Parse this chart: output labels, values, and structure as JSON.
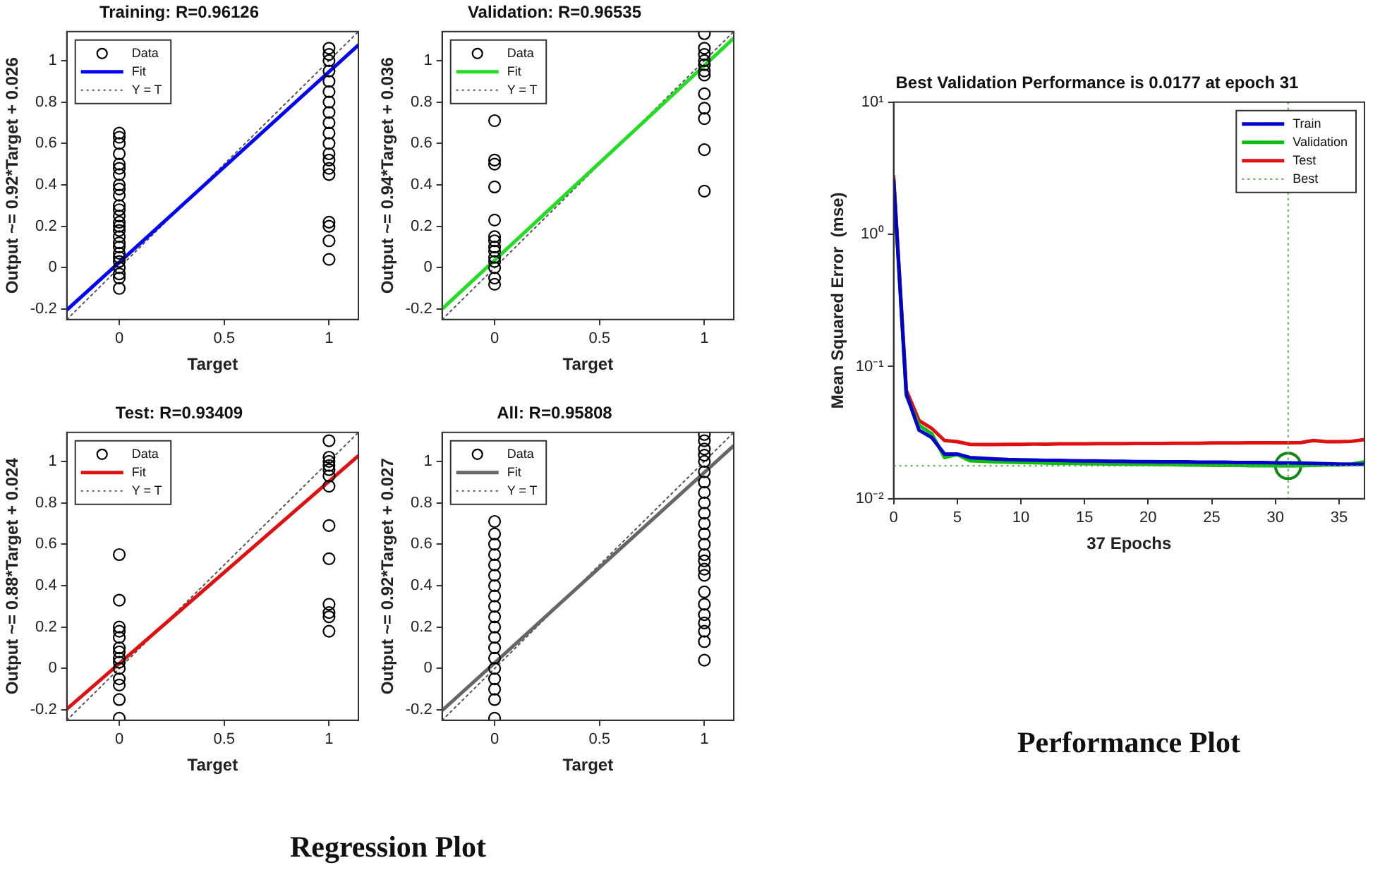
{
  "chart_data": [
    {
      "type": "scatter",
      "title": "Training: R=0.96126",
      "xlabel": "Target",
      "ylabel": "Output ~= 0.92*Target + 0.026",
      "xlim": [
        -0.25,
        1.14
      ],
      "ylim": [
        -0.25,
        1.14
      ],
      "xticks": [
        0,
        0.5,
        1
      ],
      "yticks": [
        -0.2,
        0,
        0.2,
        0.4,
        0.6,
        0.8,
        1
      ],
      "legend": "top left",
      "annotations": [
        "Regression Plot"
      ],
      "series": [
        {
          "name": "Data",
          "type": "scatter",
          "marker": "circle",
          "color": "#000000",
          "x": [
            0,
            0,
            0,
            0,
            0,
            0,
            0,
            0,
            0,
            0,
            0,
            0,
            0,
            0,
            0,
            0,
            0,
            0,
            0,
            0,
            0,
            0,
            0,
            0,
            0,
            0,
            1,
            1,
            1,
            1,
            1,
            1,
            1,
            1,
            1,
            1,
            1,
            1,
            1,
            1,
            1,
            1,
            1,
            1,
            1
          ],
          "values": [
            -0.1,
            -0.05,
            -0.03,
            0,
            0.03,
            0.05,
            0.07,
            0.1,
            0.12,
            0.15,
            0.18,
            0.2,
            0.22,
            0.25,
            0.28,
            0.3,
            0.35,
            0.38,
            0.4,
            0.45,
            0.48,
            0.5,
            0.55,
            0.6,
            0.63,
            0.65,
            0.04,
            0.13,
            0.2,
            0.22,
            0.45,
            0.48,
            0.52,
            0.55,
            0.6,
            0.65,
            0.7,
            0.75,
            0.8,
            0.85,
            0.9,
            0.95,
            1.0,
            1.03,
            1.06
          ]
        },
        {
          "name": "Fit",
          "type": "line",
          "marker": "none",
          "line_style": "solid",
          "color": "#0000ff",
          "x": [
            -0.25,
            1.14
          ],
          "values": [
            -0.204,
            1.075
          ]
        },
        {
          "name": "Y = T",
          "type": "line",
          "marker": "none",
          "line_style": "dotted",
          "color": "#555555",
          "x": [
            -0.25,
            1.14
          ],
          "values": [
            -0.25,
            1.14
          ]
        }
      ]
    },
    {
      "type": "scatter",
      "title": "Validation: R=0.96535",
      "xlabel": "Target",
      "ylabel": "Output ~= 0.94*Target + 0.036",
      "xlim": [
        -0.25,
        1.14
      ],
      "ylim": [
        -0.25,
        1.14
      ],
      "xticks": [
        0,
        0.5,
        1
      ],
      "yticks": [
        -0.2,
        0,
        0.2,
        0.4,
        0.6,
        0.8,
        1
      ],
      "legend": "top left",
      "series": [
        {
          "name": "Data",
          "type": "scatter",
          "marker": "circle",
          "color": "#000000",
          "x": [
            0,
            0,
            0,
            0,
            0,
            0,
            0,
            0,
            0,
            0,
            0,
            0,
            0,
            0,
            1,
            1,
            1,
            1,
            1,
            1,
            1,
            1,
            1,
            1,
            1,
            1
          ],
          "values": [
            -0.08,
            -0.05,
            0,
            0.03,
            0.05,
            0.08,
            0.1,
            0.13,
            0.15,
            0.23,
            0.39,
            0.5,
            0.52,
            0.71,
            0.37,
            0.57,
            0.72,
            0.77,
            0.84,
            0.93,
            0.95,
            0.98,
            1.0,
            1.03,
            1.06,
            1.13
          ]
        },
        {
          "name": "Fit",
          "type": "line",
          "marker": "none",
          "line_style": "solid",
          "color": "#22dd22",
          "x": [
            -0.25,
            1.14
          ],
          "values": [
            -0.199,
            1.108
          ]
        },
        {
          "name": "Y = T",
          "type": "line",
          "marker": "none",
          "line_style": "dotted",
          "color": "#555555",
          "x": [
            -0.25,
            1.14
          ],
          "values": [
            -0.25,
            1.14
          ]
        }
      ]
    },
    {
      "type": "scatter",
      "title": "Test: R=0.93409",
      "xlabel": "Target",
      "ylabel": "Output ~= 0.88*Target + 0.024",
      "xlim": [
        -0.25,
        1.14
      ],
      "ylim": [
        -0.25,
        1.14
      ],
      "xticks": [
        0,
        0.5,
        1
      ],
      "yticks": [
        -0.2,
        0,
        0.2,
        0.4,
        0.6,
        0.8,
        1
      ],
      "legend": "top left",
      "series": [
        {
          "name": "Data",
          "type": "scatter",
          "marker": "circle",
          "color": "#000000",
          "x": [
            0,
            0,
            0,
            0,
            0,
            0,
            0,
            0,
            0,
            0,
            0,
            0,
            0,
            0,
            1,
            1,
            1,
            1,
            1,
            1,
            1,
            1,
            1,
            1,
            1,
            1,
            1
          ],
          "values": [
            -0.24,
            -0.15,
            -0.08,
            -0.05,
            0,
            0.03,
            0.05,
            0.08,
            0.1,
            0.15,
            0.18,
            0.2,
            0.33,
            0.55,
            0.18,
            0.25,
            0.27,
            0.31,
            0.53,
            0.69,
            0.88,
            0.93,
            0.96,
            0.98,
            1.0,
            1.02,
            1.1
          ]
        },
        {
          "name": "Fit",
          "type": "line",
          "marker": "none",
          "line_style": "solid",
          "color": "#e01010",
          "x": [
            -0.25,
            1.14
          ],
          "values": [
            -0.196,
            1.027
          ]
        },
        {
          "name": "Y = T",
          "type": "line",
          "marker": "none",
          "line_style": "dotted",
          "color": "#555555",
          "x": [
            -0.25,
            1.14
          ],
          "values": [
            -0.25,
            1.14
          ]
        }
      ]
    },
    {
      "type": "scatter",
      "title": "All: R=0.95808",
      "xlabel": "Target",
      "ylabel": "Output ~= 0.92*Target + 0.027",
      "xlim": [
        -0.25,
        1.14
      ],
      "ylim": [
        -0.25,
        1.14
      ],
      "xticks": [
        0,
        0.5,
        1
      ],
      "yticks": [
        -0.2,
        0,
        0.2,
        0.4,
        0.6,
        0.8,
        1
      ],
      "legend": "top left",
      "series": [
        {
          "name": "Data",
          "type": "scatter",
          "marker": "circle",
          "color": "#000000",
          "x": [
            0,
            0,
            0,
            0,
            0,
            0,
            0,
            0,
            0,
            0,
            0,
            0,
            0,
            0,
            0,
            0,
            0,
            0,
            0,
            1,
            1,
            1,
            1,
            1,
            1,
            1,
            1,
            1,
            1,
            1,
            1,
            1,
            1,
            1,
            1,
            1,
            1,
            1,
            1,
            1,
            1,
            1,
            1
          ],
          "values": [
            -0.24,
            -0.15,
            -0.1,
            -0.05,
            0,
            0.05,
            0.1,
            0.15,
            0.2,
            0.25,
            0.3,
            0.35,
            0.4,
            0.45,
            0.5,
            0.55,
            0.6,
            0.65,
            0.71,
            0.04,
            0.13,
            0.18,
            0.22,
            0.26,
            0.31,
            0.37,
            0.45,
            0.48,
            0.52,
            0.55,
            0.6,
            0.65,
            0.7,
            0.75,
            0.8,
            0.85,
            0.9,
            0.95,
            1.0,
            1.03,
            1.06,
            1.1,
            1.13
          ]
        },
        {
          "name": "Fit",
          "type": "line",
          "marker": "none",
          "line_style": "solid",
          "color": "#666666",
          "x": [
            -0.25,
            1.14
          ],
          "values": [
            -0.203,
            1.076
          ]
        },
        {
          "name": "Y = T",
          "type": "line",
          "marker": "none",
          "line_style": "dotted",
          "color": "#555555",
          "x": [
            -0.25,
            1.14
          ],
          "values": [
            -0.25,
            1.14
          ]
        }
      ]
    },
    {
      "type": "line",
      "title": "Best Validation Performance is 0.0177 at epoch 31",
      "xlabel": "37 Epochs",
      "ylabel": "Mean Squared Error  (mse)",
      "log": "y",
      "xlim": [
        0,
        37
      ],
      "ylim": [
        0.01,
        10
      ],
      "xticks": [
        0,
        5,
        10,
        15,
        20,
        25,
        30,
        35
      ],
      "yticks": [
        {
          "value": 0.01,
          "label": "10⁻²"
        },
        {
          "value": 0.1,
          "label": "10⁻¹"
        },
        {
          "value": 1,
          "label": "10⁰"
        },
        {
          "value": 10,
          "label": "10¹"
        }
      ],
      "legend": "top right",
      "annotations": [
        "Performance Plot"
      ],
      "x": [
        0,
        1,
        2,
        3,
        4,
        5,
        6,
        7,
        8,
        9,
        10,
        11,
        12,
        13,
        14,
        15,
        16,
        17,
        18,
        19,
        20,
        21,
        22,
        23,
        24,
        25,
        26,
        27,
        28,
        29,
        30,
        31,
        32,
        33,
        34,
        35,
        36,
        37
      ],
      "ref_lines": [
        {
          "axis": "x",
          "value": 31,
          "label": "Best",
          "color": "#55aa55",
          "line_style": "dotted"
        },
        {
          "axis": "y",
          "value": 0.0177,
          "color": "#55aa55",
          "line_style": "dotted"
        }
      ],
      "series": [
        {
          "name": "Train",
          "color": "#0000cc",
          "values": [
            2.6,
            0.062,
            0.033,
            0.029,
            0.0218,
            0.0218,
            0.0205,
            0.0202,
            0.02,
            0.0198,
            0.0197,
            0.0196,
            0.0195,
            0.0195,
            0.0194,
            0.0193,
            0.0193,
            0.0192,
            0.0192,
            0.0191,
            0.0191,
            0.019,
            0.019,
            0.019,
            0.0189,
            0.0189,
            0.0189,
            0.0188,
            0.0188,
            0.0188,
            0.0187,
            0.0187,
            0.0186,
            0.0185,
            0.0184,
            0.0183,
            0.0182,
            0.0182
          ]
        },
        {
          "name": "Validation",
          "color": "#11bb11",
          "values": [
            2.6,
            0.06,
            0.036,
            0.031,
            0.0205,
            0.0216,
            0.0194,
            0.0192,
            0.019,
            0.0189,
            0.0188,
            0.0187,
            0.0186,
            0.0185,
            0.0185,
            0.0184,
            0.0184,
            0.0183,
            0.0183,
            0.0182,
            0.0182,
            0.0181,
            0.0181,
            0.018,
            0.018,
            0.0179,
            0.0179,
            0.0179,
            0.0178,
            0.0178,
            0.0178,
            0.0177,
            0.0178,
            0.0179,
            0.018,
            0.018,
            0.0183,
            0.019
          ]
        },
        {
          "name": "Test",
          "color": "#dd1111",
          "values": [
            2.75,
            0.066,
            0.039,
            0.034,
            0.0276,
            0.027,
            0.0258,
            0.0257,
            0.0257,
            0.0258,
            0.0258,
            0.0259,
            0.0259,
            0.026,
            0.026,
            0.026,
            0.0261,
            0.0261,
            0.0261,
            0.0262,
            0.0262,
            0.0262,
            0.0263,
            0.0263,
            0.0263,
            0.0264,
            0.0264,
            0.0264,
            0.0265,
            0.0265,
            0.0265,
            0.0265,
            0.0266,
            0.0276,
            0.027,
            0.027,
            0.0272,
            0.028
          ]
        },
        {
          "type": "scatter",
          "marker": "circle",
          "color": "#118811",
          "x": [
            31
          ],
          "values": [
            0.0177
          ]
        }
      ]
    }
  ]
}
